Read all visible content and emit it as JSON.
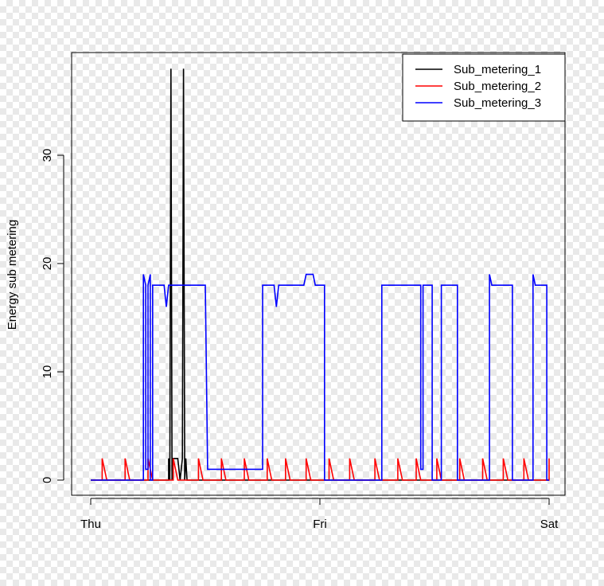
{
  "chart_data": {
    "type": "line",
    "xlabel": "",
    "ylabel": "Energy sub metering",
    "x_ticks": [
      "Thu",
      "Fri",
      "Sat"
    ],
    "y_ticks": [
      0,
      10,
      20,
      30
    ],
    "xlim": [
      0,
      2
    ],
    "ylim": [
      0,
      38
    ],
    "legend_position": "top-right",
    "series": [
      {
        "name": "Sub_metering_1",
        "color": "#000000",
        "points": [
          [
            0,
            0
          ],
          [
            0.34,
            0
          ],
          [
            0.34,
            2
          ],
          [
            0.345,
            0
          ],
          [
            0.35,
            38
          ],
          [
            0.355,
            0
          ],
          [
            0.36,
            2
          ],
          [
            0.38,
            2
          ],
          [
            0.39,
            0
          ],
          [
            0.4,
            2
          ],
          [
            0.405,
            38
          ],
          [
            0.41,
            0
          ],
          [
            0.415,
            2
          ],
          [
            0.42,
            0
          ],
          [
            2,
            0
          ]
        ]
      },
      {
        "name": "Sub_metering_2",
        "color": "#ff0000",
        "points": [
          [
            0,
            0
          ],
          [
            0.05,
            0
          ],
          [
            0.05,
            2
          ],
          [
            0.06,
            1
          ],
          [
            0.07,
            0
          ],
          [
            0.15,
            0
          ],
          [
            0.15,
            2
          ],
          [
            0.16,
            1
          ],
          [
            0.17,
            0
          ],
          [
            0.25,
            0
          ],
          [
            0.25,
            2
          ],
          [
            0.26,
            1
          ],
          [
            0.27,
            0
          ],
          [
            0.36,
            0
          ],
          [
            0.36,
            2
          ],
          [
            0.37,
            1
          ],
          [
            0.38,
            0
          ],
          [
            0.47,
            0
          ],
          [
            0.47,
            2
          ],
          [
            0.48,
            1
          ],
          [
            0.49,
            0
          ],
          [
            0.57,
            0
          ],
          [
            0.57,
            2
          ],
          [
            0.58,
            1
          ],
          [
            0.59,
            0
          ],
          [
            0.67,
            0
          ],
          [
            0.67,
            2
          ],
          [
            0.68,
            1
          ],
          [
            0.69,
            0
          ],
          [
            0.77,
            0
          ],
          [
            0.77,
            2
          ],
          [
            0.78,
            1
          ],
          [
            0.79,
            0
          ],
          [
            0.85,
            0
          ],
          [
            0.85,
            2
          ],
          [
            0.86,
            1
          ],
          [
            0.87,
            0
          ],
          [
            0.94,
            0
          ],
          [
            0.94,
            2
          ],
          [
            0.95,
            1
          ],
          [
            0.96,
            0
          ],
          [
            1.04,
            0
          ],
          [
            1.04,
            2
          ],
          [
            1.05,
            1
          ],
          [
            1.06,
            0
          ],
          [
            1.13,
            0
          ],
          [
            1.13,
            2
          ],
          [
            1.14,
            1
          ],
          [
            1.15,
            0
          ],
          [
            1.24,
            0
          ],
          [
            1.24,
            2
          ],
          [
            1.25,
            1
          ],
          [
            1.26,
            0
          ],
          [
            1.34,
            0
          ],
          [
            1.34,
            2
          ],
          [
            1.35,
            1
          ],
          [
            1.36,
            0
          ],
          [
            1.42,
            0
          ],
          [
            1.42,
            2
          ],
          [
            1.43,
            1
          ],
          [
            1.44,
            0
          ],
          [
            1.51,
            0
          ],
          [
            1.51,
            2
          ],
          [
            1.52,
            1
          ],
          [
            1.53,
            0
          ],
          [
            1.61,
            0
          ],
          [
            1.61,
            2
          ],
          [
            1.62,
            1
          ],
          [
            1.63,
            0
          ],
          [
            1.71,
            0
          ],
          [
            1.71,
            2
          ],
          [
            1.72,
            1
          ],
          [
            1.73,
            0
          ],
          [
            1.8,
            0
          ],
          [
            1.8,
            2
          ],
          [
            1.81,
            1
          ],
          [
            1.82,
            0
          ],
          [
            1.89,
            0
          ],
          [
            1.89,
            2
          ],
          [
            1.9,
            1
          ],
          [
            1.91,
            0
          ],
          [
            2,
            0
          ],
          [
            2,
            2
          ]
        ]
      },
      {
        "name": "Sub_metering_3",
        "color": "#0000ff",
        "points": [
          [
            0,
            0
          ],
          [
            0.23,
            0
          ],
          [
            0.23,
            19
          ],
          [
            0.24,
            18
          ],
          [
            0.24,
            1
          ],
          [
            0.25,
            1
          ],
          [
            0.25,
            18
          ],
          [
            0.26,
            19
          ],
          [
            0.26,
            0
          ],
          [
            0.27,
            0
          ],
          [
            0.27,
            18
          ],
          [
            0.32,
            18
          ],
          [
            0.33,
            16
          ],
          [
            0.34,
            18
          ],
          [
            0.5,
            18
          ],
          [
            0.51,
            1
          ],
          [
            0.75,
            1
          ],
          [
            0.75,
            18
          ],
          [
            0.8,
            18
          ],
          [
            0.81,
            16
          ],
          [
            0.82,
            18
          ],
          [
            0.93,
            18
          ],
          [
            0.94,
            19
          ],
          [
            0.97,
            19
          ],
          [
            0.98,
            18
          ],
          [
            1.02,
            18
          ],
          [
            1.02,
            0
          ],
          [
            1.27,
            0
          ],
          [
            1.27,
            18
          ],
          [
            1.44,
            18
          ],
          [
            1.44,
            1
          ],
          [
            1.45,
            1
          ],
          [
            1.45,
            18
          ],
          [
            1.49,
            18
          ],
          [
            1.49,
            0
          ],
          [
            1.53,
            0
          ],
          [
            1.53,
            18
          ],
          [
            1.6,
            18
          ],
          [
            1.6,
            0
          ],
          [
            1.74,
            0
          ],
          [
            1.74,
            19
          ],
          [
            1.75,
            18
          ],
          [
            1.84,
            18
          ],
          [
            1.84,
            0
          ],
          [
            1.93,
            0
          ],
          [
            1.93,
            19
          ],
          [
            1.94,
            18
          ],
          [
            1.99,
            18
          ],
          [
            1.99,
            0
          ],
          [
            2,
            0
          ]
        ]
      }
    ]
  }
}
